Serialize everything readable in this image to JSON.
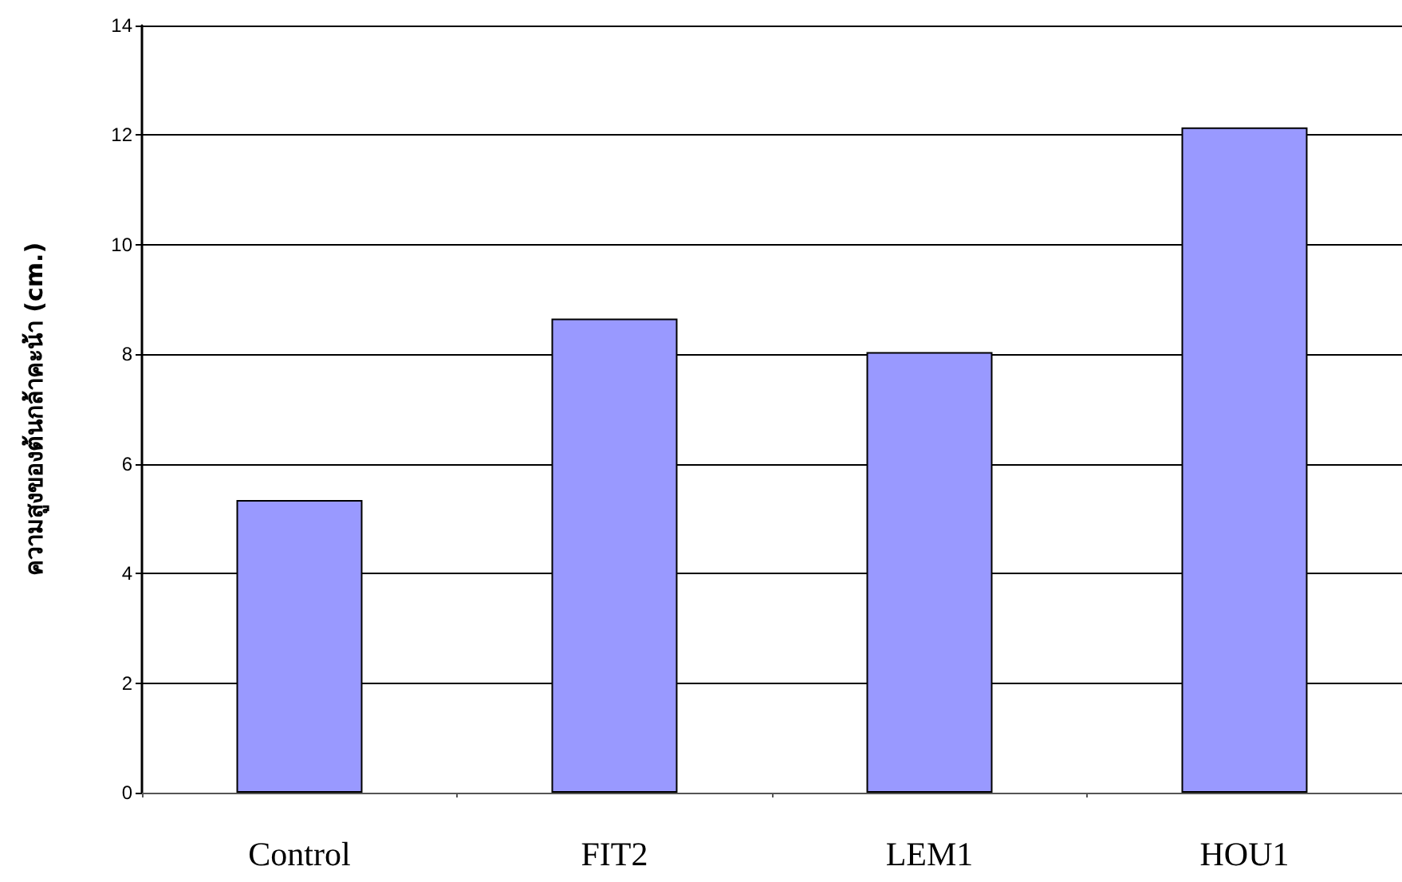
{
  "chart_data": {
    "type": "bar",
    "ylabel": "ความสูงของต้นกล้าคะน้า (cm.)",
    "categories": [
      "Control",
      "FIT2",
      "LEM1",
      "HOU1"
    ],
    "values": [
      5.34,
      8.65,
      8.04,
      12.14
    ],
    "color": "#9999ff",
    "ylim": [
      0,
      14
    ],
    "yticks": [
      0,
      2,
      4,
      6,
      8,
      10,
      12,
      14
    ],
    "grid": "y"
  }
}
